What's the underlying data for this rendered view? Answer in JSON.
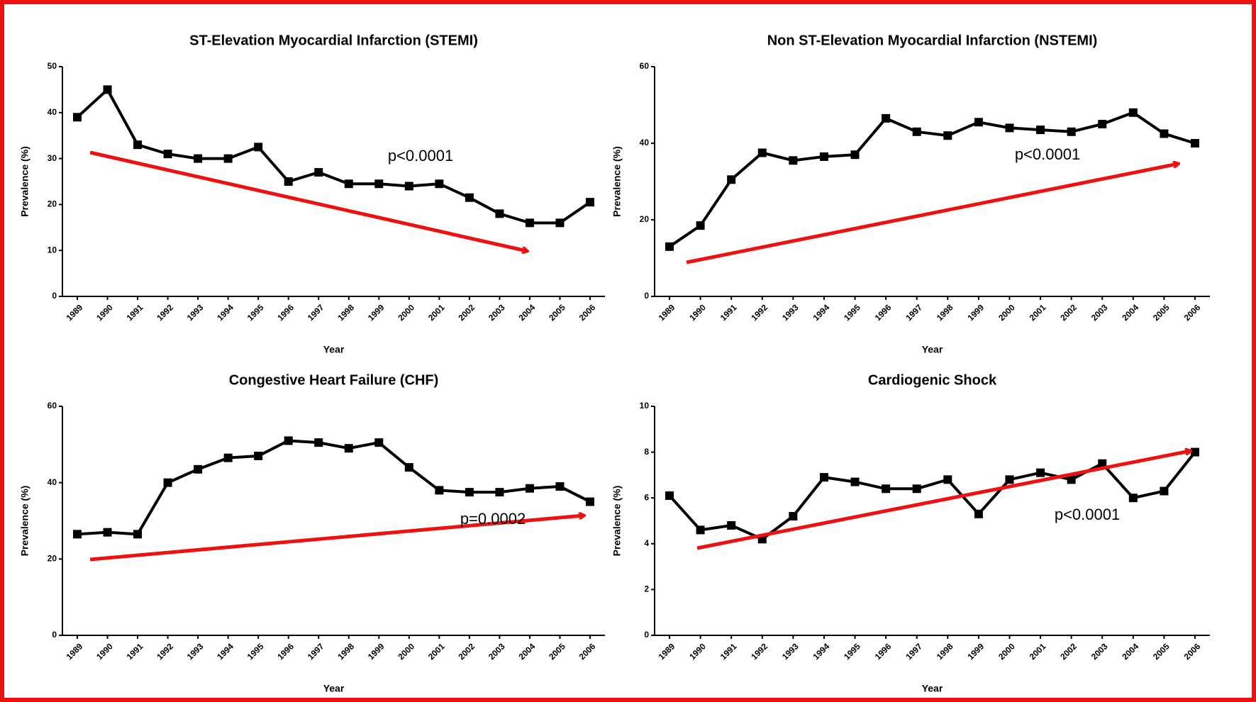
{
  "chart_data": [
    {
      "type": "line",
      "title": "ST-Elevation Myocardial Infarction (STEMI)",
      "x_label": "Year",
      "y_label": "Prevalence (%)",
      "annotation": "p<0.0001",
      "categories": [
        "1989",
        "1990",
        "1991",
        "1992",
        "1993",
        "1994",
        "1995",
        "1996",
        "1997",
        "1998",
        "1999",
        "2000",
        "2001",
        "2002",
        "2003",
        "2004",
        "2005",
        "2006"
      ],
      "series": [
        {
          "name": "STEMI",
          "color": "#000000",
          "values": [
            39,
            45,
            33,
            31,
            30,
            30,
            32.5,
            25,
            27,
            24.5,
            24.5,
            24,
            24.5,
            21.5,
            18,
            16,
            16,
            20.5
          ]
        }
      ],
      "ylim": [
        0,
        50
      ],
      "yticks": [
        0,
        10,
        20,
        30,
        40,
        50
      ]
    },
    {
      "type": "line",
      "title": "Non ST-Elevation Myocardial Infarction (NSTEMI)",
      "x_label": "Year",
      "y_label": "Prevalence (%)",
      "annotation": "p<0.0001",
      "categories": [
        "1989",
        "1990",
        "1991",
        "1992",
        "1993",
        "1994",
        "1995",
        "1996",
        "1997",
        "1998",
        "1999",
        "2000",
        "2001",
        "2002",
        "2003",
        "2004",
        "2005",
        "2006"
      ],
      "series": [
        {
          "name": "NSTEMI",
          "color": "#000000",
          "values": [
            13,
            18.5,
            30.5,
            37.5,
            35.5,
            36.5,
            37,
            46.5,
            43,
            42,
            45.5,
            44,
            43.5,
            43,
            45,
            48,
            42.5,
            40
          ]
        }
      ],
      "ylim": [
        0,
        60
      ],
      "yticks": [
        0,
        20,
        40,
        60
      ]
    },
    {
      "type": "line",
      "title": "Congestive Heart Failure (CHF)",
      "x_label": "Year",
      "y_label": "Prevalence (%)",
      "annotation": "p=0.0002",
      "categories": [
        "1989",
        "1990",
        "1991",
        "1992",
        "1993",
        "1994",
        "1995",
        "1996",
        "1997",
        "1998",
        "1999",
        "2000",
        "2001",
        "2002",
        "2003",
        "2004",
        "2005",
        "2006"
      ],
      "series": [
        {
          "name": "CHF",
          "color": "#000000",
          "values": [
            26.5,
            27,
            26.5,
            40,
            43.5,
            46.5,
            47,
            51,
            50.5,
            49,
            50.5,
            44,
            38,
            37.5,
            37.5,
            38.5,
            39,
            35
          ]
        }
      ],
      "ylim": [
        0,
        60
      ],
      "yticks": [
        0,
        20,
        40,
        60
      ]
    },
    {
      "type": "line",
      "title": "Cardiogenic Shock",
      "x_label": "Year",
      "y_label": "Prevalence (%)",
      "annotation": "p<0.0001",
      "categories": [
        "1989",
        "1990",
        "1991",
        "1992",
        "1993",
        "1994",
        "1995",
        "1996",
        "1997",
        "1998",
        "1999",
        "2000",
        "2001",
        "2002",
        "2003",
        "2004",
        "2005",
        "2006"
      ],
      "series": [
        {
          "name": "Cardiogenic Shock",
          "color": "#000000",
          "values": [
            6.1,
            4.6,
            4.8,
            4.2,
            5.2,
            6.9,
            6.7,
            6.4,
            6.4,
            6.8,
            5.3,
            6.8,
            7.1,
            6.8,
            7.5,
            6.0,
            6.3,
            8.0
          ]
        }
      ],
      "ylim": [
        0,
        10
      ],
      "yticks": [
        0,
        2,
        4,
        6,
        8,
        10
      ]
    }
  ]
}
